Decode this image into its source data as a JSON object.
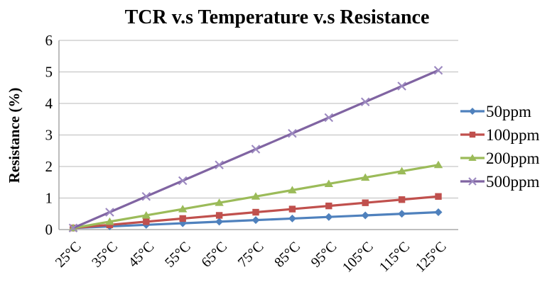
{
  "chart_data": {
    "type": "line",
    "title": "TCR v.s Temperature v.s Resistance",
    "xlabel": "",
    "ylabel": "Resistance  (%)",
    "ylim": [
      0,
      6
    ],
    "yticks": [
      0,
      1,
      2,
      3,
      4,
      5,
      6
    ],
    "grid": true,
    "legend_position": "right",
    "categories": [
      "25°C",
      "35°C",
      "45°C",
      "55°C",
      "65°C",
      "75°C",
      "85°C",
      "95°C",
      "105°C",
      "115°C",
      "125°C"
    ],
    "series": [
      {
        "name": "50ppm",
        "color": "#4F81BD",
        "marker": "diamond",
        "marker_color": "#4F81BD",
        "values": [
          0.05,
          0.1,
          0.15,
          0.2,
          0.25,
          0.3,
          0.35,
          0.4,
          0.45,
          0.5,
          0.55
        ]
      },
      {
        "name": "100ppm",
        "color": "#C0504D",
        "marker": "square",
        "marker_color": "#C0504D",
        "values": [
          0.05,
          0.15,
          0.25,
          0.35,
          0.45,
          0.55,
          0.65,
          0.75,
          0.85,
          0.95,
          1.05
        ]
      },
      {
        "name": "200ppm",
        "color": "#9BBB59",
        "marker": "triangle",
        "marker_color": "#9BBB59",
        "values": [
          0.05,
          0.25,
          0.45,
          0.65,
          0.85,
          1.05,
          1.25,
          1.45,
          1.65,
          1.85,
          2.05
        ]
      },
      {
        "name": "500ppm",
        "color": "#8064A2",
        "marker": "x",
        "marker_color": "#9C89C0",
        "values": [
          0.05,
          0.55,
          1.05,
          1.55,
          2.05,
          2.55,
          3.05,
          3.55,
          4.05,
          4.55,
          5.05
        ]
      }
    ],
    "colors": {
      "gridline": "#C6C6C6",
      "axis": "#999999",
      "text": "#000000",
      "background": "#FFFFFF"
    }
  }
}
